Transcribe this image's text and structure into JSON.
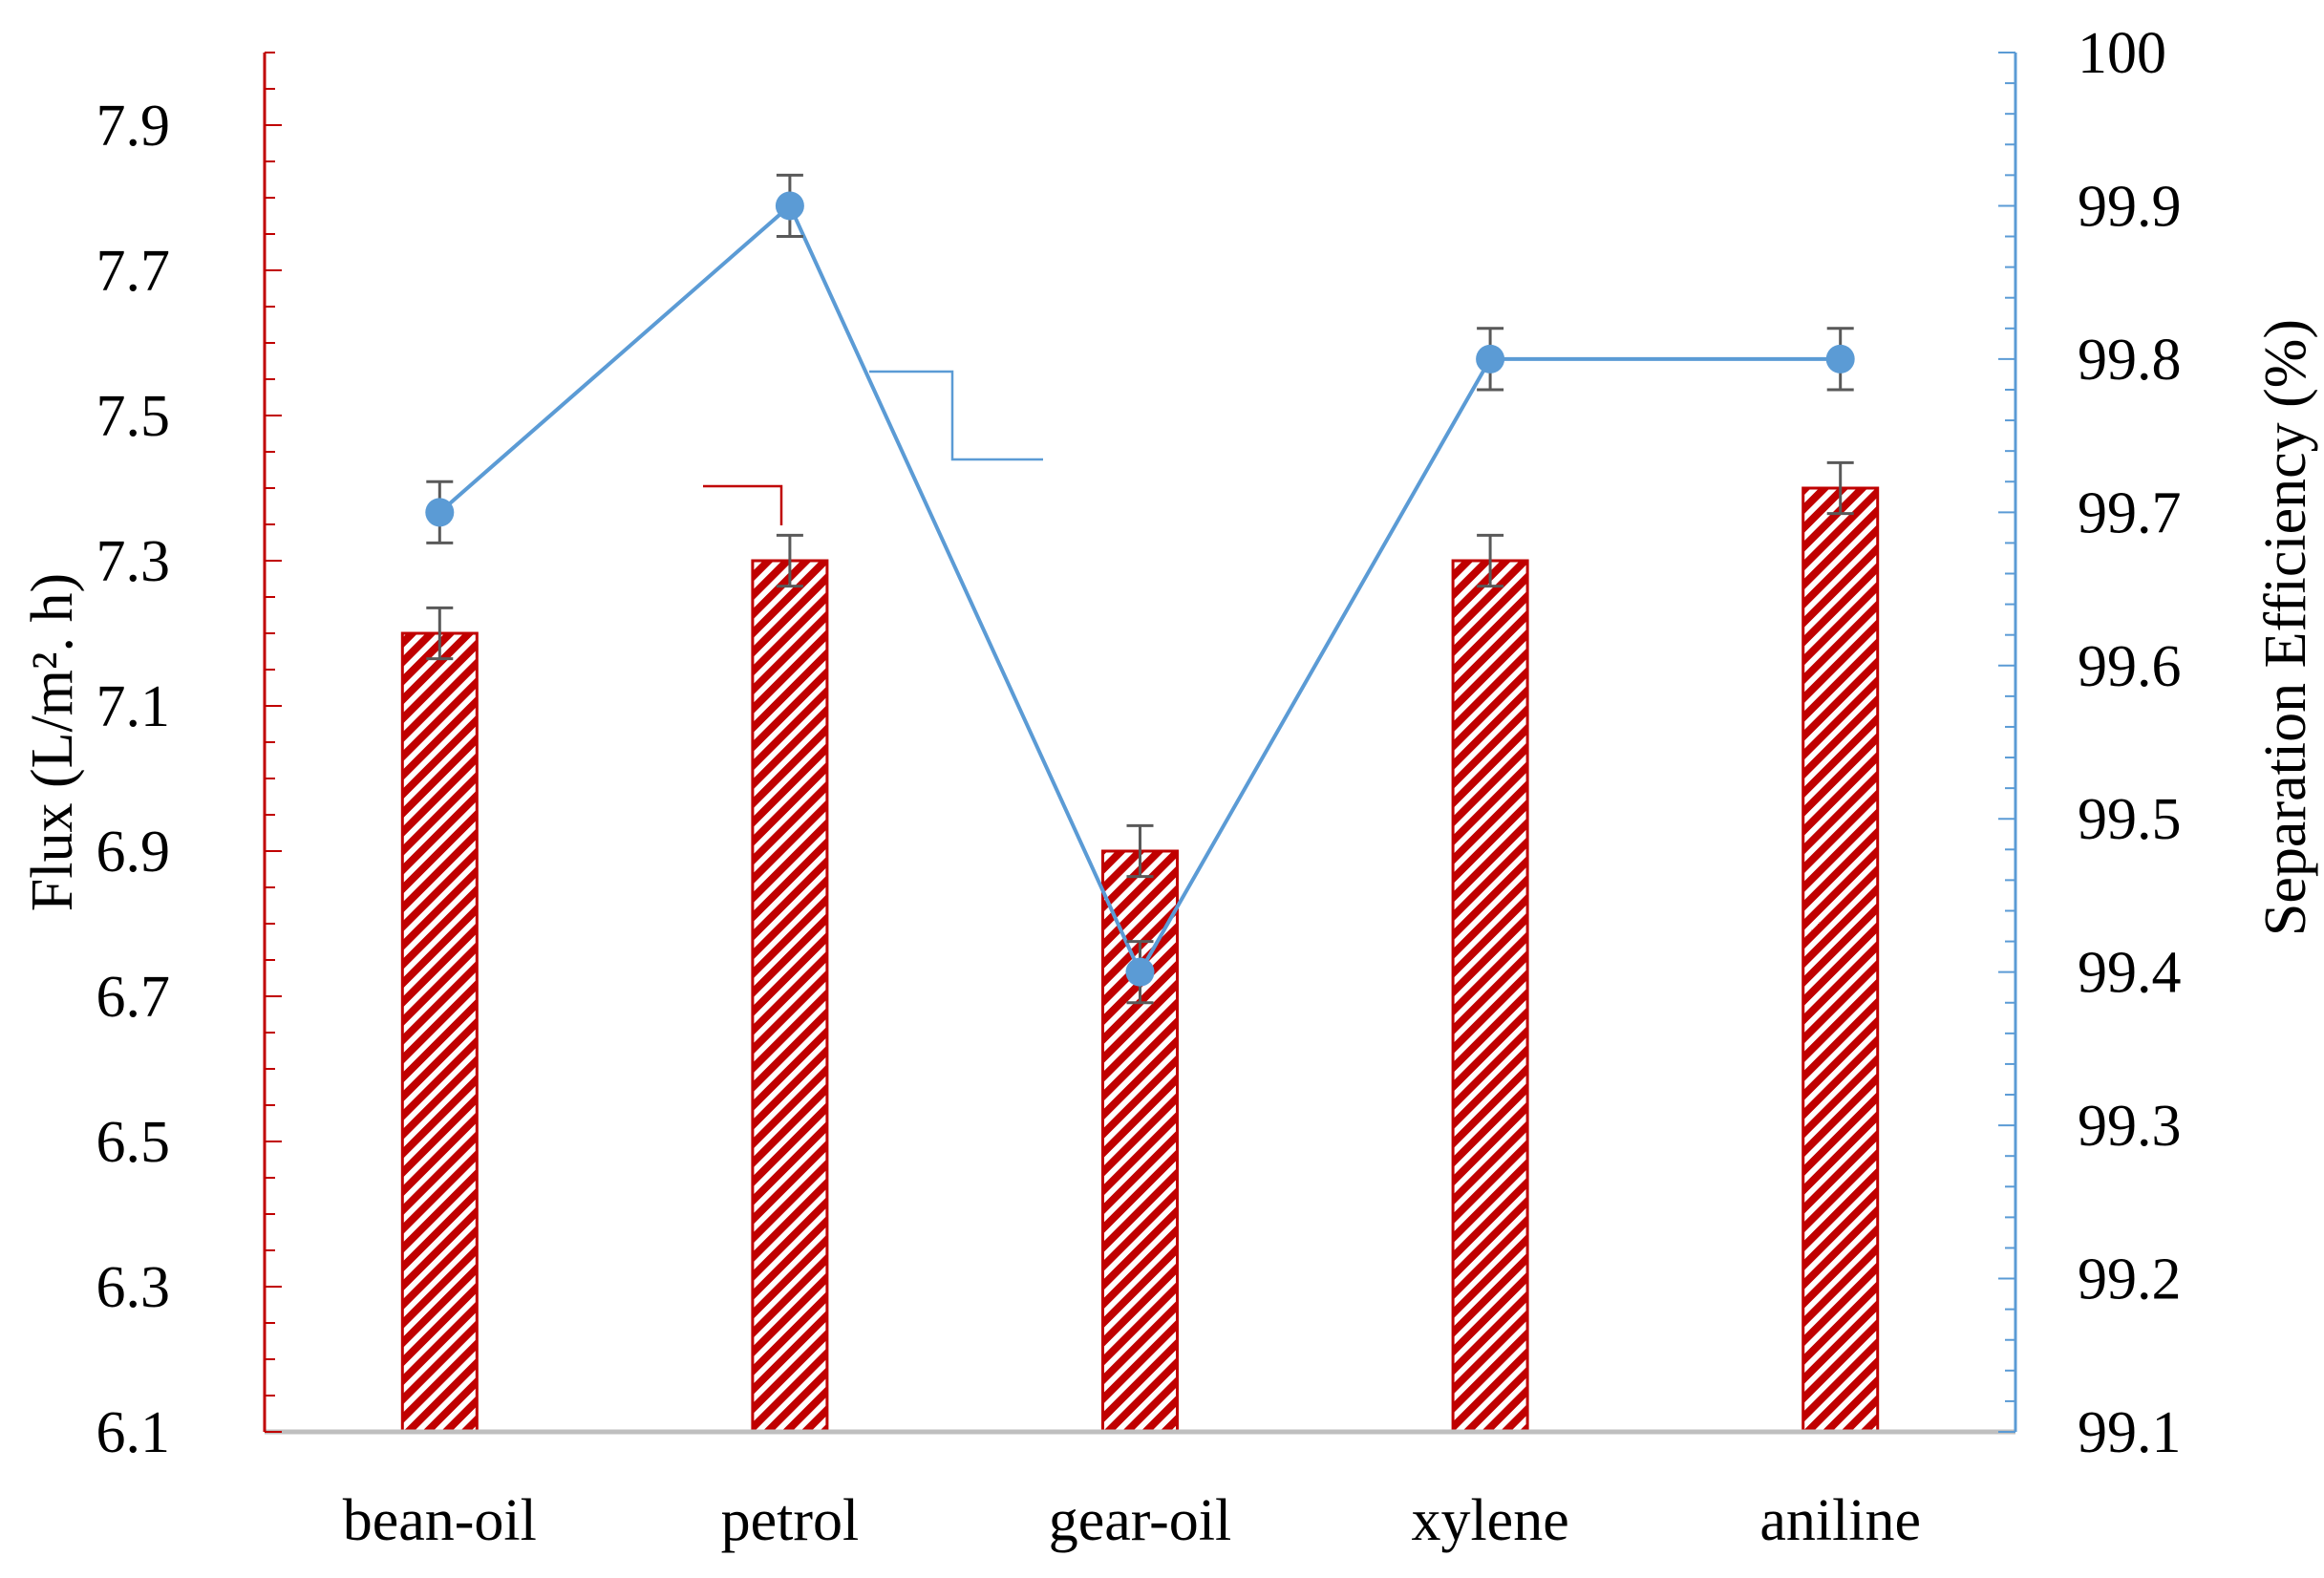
{
  "chart_data": {
    "type": "bar",
    "categories": [
      "bean-oil",
      "petrol",
      "gear-oil",
      "xylene",
      "aniline"
    ],
    "series": [
      {
        "name": "Flux",
        "type": "bar",
        "axis": "left",
        "values": [
          7.2,
          7.3,
          6.9,
          7.3,
          7.4
        ],
        "error": [
          0.035,
          0.035,
          0.035,
          0.035,
          0.035
        ],
        "color": "#C00000"
      },
      {
        "name": "Separation Efficiency",
        "type": "line",
        "axis": "right",
        "values": [
          99.7,
          99.9,
          99.4,
          99.8,
          99.8
        ],
        "error": [
          0.02,
          0.02,
          0.02,
          0.02,
          0.02
        ],
        "color": "#5B9BD5"
      }
    ],
    "y_left": {
      "label": "Flux (L/m². h)",
      "range": [
        6.1,
        8.0
      ],
      "ticks": [
        "6.1",
        "6.3",
        "6.5",
        "6.7",
        "6.9",
        "7.1",
        "7.3",
        "7.5",
        "7.7",
        "7.9"
      ],
      "color": "#C00000"
    },
    "y_right": {
      "label": "Separation Efficiency (%)",
      "range": [
        99.1,
        100
      ],
      "ticks": [
        "99.1",
        "99.2",
        "99.3",
        "99.4",
        "99.5",
        "99.6",
        "99.7",
        "99.8",
        "99.9",
        "100"
      ],
      "color": "#5B9BD5"
    },
    "grid": false,
    "legend": "none"
  }
}
